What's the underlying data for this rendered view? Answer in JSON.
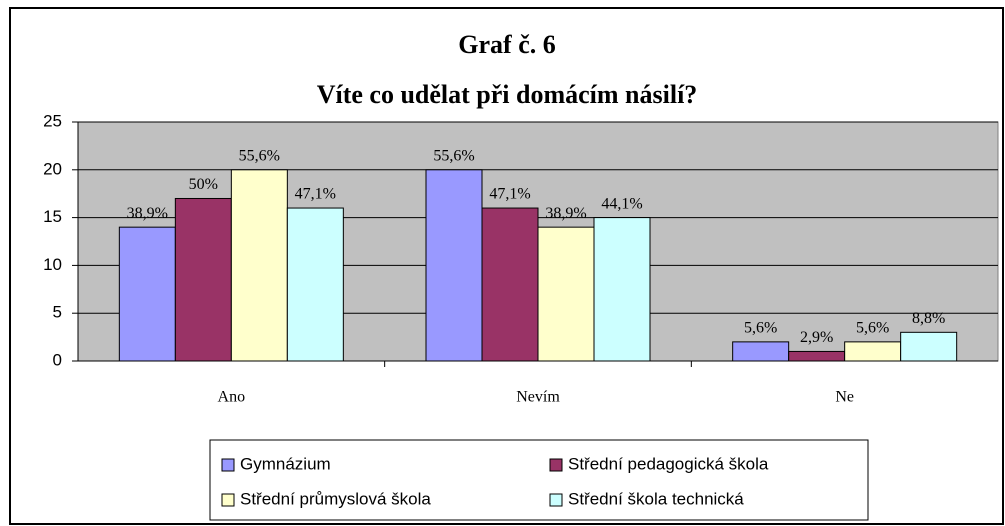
{
  "chart_data": {
    "type": "bar",
    "title": "Graf č. 6",
    "subtitle": "Víte co udělat při domácím násilí?",
    "categories": [
      "Ano",
      "Nevím",
      "Ne"
    ],
    "series": [
      {
        "name": "Gymnázium",
        "color": "#9999ff",
        "values": [
          14,
          20,
          2
        ],
        "percent_labels": [
          "38,9%",
          "55,6%",
          "5,6%"
        ]
      },
      {
        "name": "Střední pedagogická škola",
        "color": "#993366",
        "values": [
          17,
          16,
          1
        ],
        "percent_labels": [
          "50%",
          "47,1%",
          "2,9%"
        ]
      },
      {
        "name": "Střední průmyslová škola",
        "color": "#ffffcc",
        "values": [
          20,
          14,
          2
        ],
        "percent_labels": [
          "55,6%",
          "38,9%",
          "5,6%"
        ]
      },
      {
        "name": "Střední škola technická",
        "color": "#ccffff",
        "values": [
          16,
          15,
          3
        ],
        "percent_labels": [
          "47,1%",
          "44,1%",
          "8,8%"
        ]
      }
    ],
    "ylim": [
      0,
      25
    ],
    "yticks": [
      0,
      5,
      10,
      15,
      20,
      25
    ],
    "grid": true,
    "plot_background": "#c0c0c0",
    "legend": "bottom"
  }
}
